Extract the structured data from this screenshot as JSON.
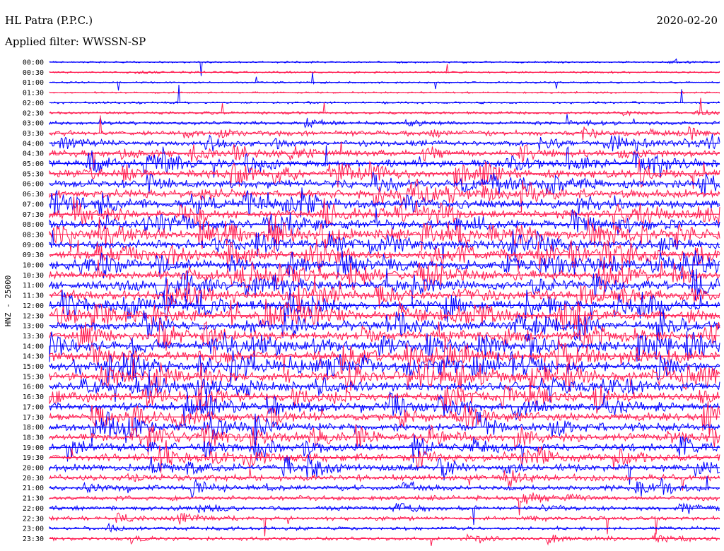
{
  "header": {
    "station": "HL Patra (P.P.C.)",
    "filter": "Applied filter: WWSSN-SP",
    "date": "2020-02-20"
  },
  "colors": {
    "trace_a": "#0000ff",
    "trace_b": "#ff1a4f",
    "background": "#ffffff"
  },
  "chart_data": {
    "type": "line",
    "title": "HL Patra (P.P.C.)",
    "subtitle": "Applied filter: WWSSN-SP",
    "ylabel": "HNZ - 25000",
    "xlabel": "",
    "date": "2020-02-20",
    "row_labels": [
      "00:00",
      "00:30",
      "01:00",
      "01:30",
      "02:00",
      "02:30",
      "03:00",
      "03:30",
      "04:00",
      "04:30",
      "05:00",
      "05:30",
      "06:00",
      "06:30",
      "07:00",
      "07:30",
      "08:00",
      "08:30",
      "09:00",
      "09:30",
      "10:00",
      "10:30",
      "11:00",
      "11:30",
      "12:00",
      "12:30",
      "13:00",
      "13:30",
      "14:00",
      "14:30",
      "15:00",
      "15:30",
      "16:00",
      "16:30",
      "17:00",
      "17:30",
      "18:00",
      "18:30",
      "19:00",
      "19:30",
      "20:00",
      "20:30",
      "21:00",
      "21:30",
      "22:00",
      "22:30",
      "23:00",
      "23:30"
    ],
    "row_colors": [
      "trace_a",
      "trace_b"
    ],
    "activity": [
      0.08,
      0.1,
      0.07,
      0.06,
      0.12,
      0.2,
      0.3,
      0.5,
      0.6,
      0.7,
      0.8,
      0.85,
      0.9,
      0.9,
      0.95,
      0.95,
      1.0,
      1.0,
      1.0,
      1.0,
      1.0,
      1.0,
      1.0,
      1.0,
      1.0,
      1.0,
      1.0,
      1.0,
      1.0,
      1.0,
      0.95,
      0.95,
      0.95,
      0.9,
      0.9,
      0.9,
      0.85,
      0.85,
      0.8,
      0.75,
      0.7,
      0.6,
      0.5,
      0.45,
      0.4,
      0.35,
      0.3,
      0.3
    ],
    "grid": false
  }
}
